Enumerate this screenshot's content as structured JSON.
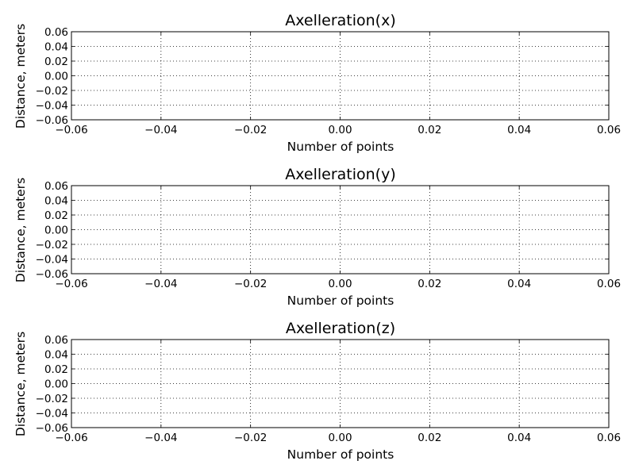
{
  "chart_data": [
    {
      "type": "line",
      "title": "Axelleration(x)",
      "xlabel": "Number of points",
      "ylabel": "Distance, meters",
      "xlim": [
        -0.06,
        0.06
      ],
      "ylim": [
        -0.06,
        0.06
      ],
      "xticks": [
        "−0.06",
        "−0.04",
        "−0.02",
        "0.00",
        "0.02",
        "0.04",
        "0.06"
      ],
      "yticks": [
        "0.06",
        "0.04",
        "0.02",
        "0.00",
        "−0.02",
        "−0.04",
        "−0.06"
      ],
      "grid": true,
      "series": [
        {
          "x": [],
          "y": []
        }
      ]
    },
    {
      "type": "line",
      "title": "Axelleration(y)",
      "xlabel": "Number of points",
      "ylabel": "Distance, meters",
      "xlim": [
        -0.06,
        0.06
      ],
      "ylim": [
        -0.06,
        0.06
      ],
      "xticks": [
        "−0.06",
        "−0.04",
        "−0.02",
        "0.00",
        "0.02",
        "0.04",
        "0.06"
      ],
      "yticks": [
        "0.06",
        "0.04",
        "0.02",
        "0.00",
        "−0.02",
        "−0.04",
        "−0.06"
      ],
      "grid": true,
      "series": [
        {
          "x": [],
          "y": []
        }
      ]
    },
    {
      "type": "line",
      "title": "Axelleration(z)",
      "xlabel": "Number of points",
      "ylabel": "Distance, meters",
      "xlim": [
        -0.06,
        0.06
      ],
      "ylim": [
        -0.06,
        0.06
      ],
      "xticks": [
        "−0.06",
        "−0.04",
        "−0.02",
        "0.00",
        "0.02",
        "0.04",
        "0.06"
      ],
      "yticks": [
        "0.06",
        "0.04",
        "0.02",
        "0.00",
        "−0.02",
        "−0.04",
        "−0.06"
      ],
      "grid": true,
      "series": [
        {
          "x": [],
          "y": []
        }
      ]
    }
  ]
}
